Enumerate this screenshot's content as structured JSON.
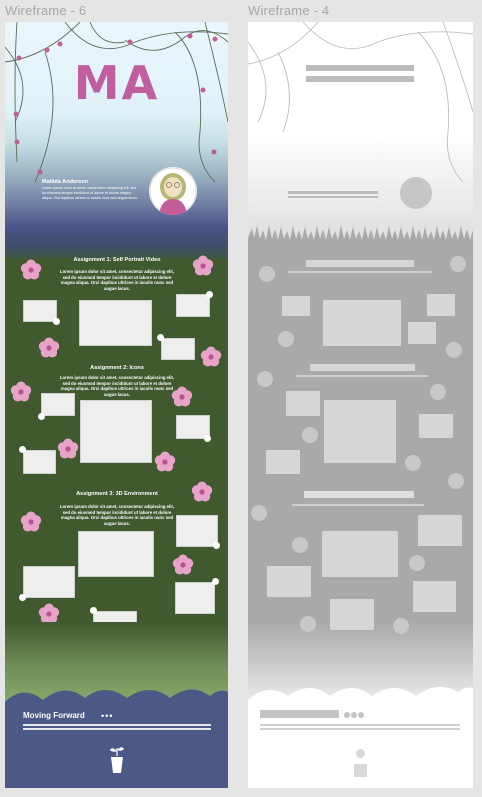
{
  "frames": {
    "left_label": "Wireframe - 6",
    "right_label": "Wireframe - 4"
  },
  "header": {
    "logo": "MA"
  },
  "bio": {
    "name": "Matilda Anderson",
    "text": "Lorem ipsum dolor sit amet, consectetur adipiscing elit, sed do eiusmod tempor incididunt ut labore et dolore magna aliqua. Orci dapibus ultrices in iaculis nunc sed augue lacus."
  },
  "assignments": [
    {
      "title": "Assignment 1: Self Portrait Video",
      "text": "Lorem ipsum dolor sit amet, consectetur adipiscing elit, sed do eiusmod tempor incididunt ut labore et dolore magna aliqua.  Orci dapibus ultrices in iaculis nunc sed augue lacus."
    },
    {
      "title": "Assignment 2: Icons",
      "text": "Lorem ipsum dolor sit amet, consectetur adipiscing elit, sed do eiusmod tempor incididunt ut labore et dolore magna aliqua.  Orci dapibus ultrices in iaculis nunc sed augue lacus."
    },
    {
      "title": "Assignment 3: 3D Environment",
      "text": "Lorem ipsum dolor sit amet, consectetur adipiscing elit, sed do eiusmod tempor incididunt ut labore et dolore magna aliqua.  Orci dapibus ultrices in iaculis nunc sed augue lacus."
    }
  ],
  "footer": {
    "label": "Moving Forward",
    "dots": "•••",
    "icon": "potted-sprout-icon"
  },
  "colors": {
    "logo": "#c05ea0",
    "grass": "#41592f",
    "footer": "#4c5886",
    "flower": "#e7a3c8"
  }
}
